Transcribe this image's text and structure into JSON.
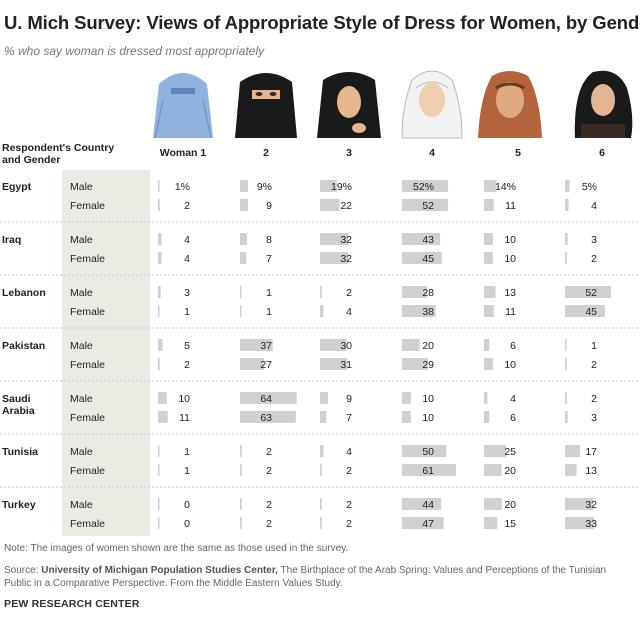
{
  "title": "U. Mich Survey: Views of Appropriate Style of Dress for Women, by Gender",
  "subtitle": "% who say woman is dressed most appropriately",
  "note": "Note: The images of women shown are the same as those used in the survey.",
  "source": {
    "prefix": "Source: ",
    "org": "University of Michigan Population Studies Center,",
    "rest": " The Birthplace of the Arab Spring: Values and Perceptions of the Tunisian Public in a Comparative Perspective. From the Middle Eastern Values Study."
  },
  "brand": "PEW RESEARCH CENTER",
  "colors": {
    "bar": "#d0d0d0",
    "band": "#ecebe3",
    "rule": "#c8c8c8",
    "text": "#222222",
    "veil_blue": "#8fb3df",
    "veil_black": "#1a1a1a",
    "skin": "#e6b68c"
  },
  "chart_data": {
    "type": "table",
    "title": "U. Mich Survey: Views of Appropriate Style of Dress for Women, by Gender",
    "subtitle": "% who say woman is dressed most appropriately",
    "row_header": "Respondent's Country and Gender",
    "columns": [
      "Woman 1",
      "2",
      "3",
      "4",
      "5",
      "6"
    ],
    "column_images": [
      "burqa-woman-image",
      "niqab-woman-image",
      "chador-woman-image",
      "white-hijab-woman-image",
      "loose-headscarf-woman-image",
      "uncovered-woman-image"
    ],
    "unit": "%",
    "percent_sign_row": "Egypt Male",
    "countries": [
      {
        "name": "Egypt",
        "rows": [
          {
            "gender": "Male",
            "values": [
              1,
              9,
              19,
              52,
              14,
              5
            ]
          },
          {
            "gender": "Female",
            "values": [
              2,
              9,
              22,
              52,
              11,
              4
            ]
          }
        ]
      },
      {
        "name": "Iraq",
        "rows": [
          {
            "gender": "Male",
            "values": [
              4,
              8,
              32,
              43,
              10,
              3
            ]
          },
          {
            "gender": "Female",
            "values": [
              4,
              7,
              32,
              45,
              10,
              2
            ]
          }
        ]
      },
      {
        "name": "Lebanon",
        "rows": [
          {
            "gender": "Male",
            "values": [
              3,
              1,
              2,
              28,
              13,
              52
            ]
          },
          {
            "gender": "Female",
            "values": [
              1,
              1,
              4,
              38,
              11,
              45
            ]
          }
        ]
      },
      {
        "name": "Pakistan",
        "rows": [
          {
            "gender": "Male",
            "values": [
              5,
              37,
              30,
              20,
              6,
              1
            ]
          },
          {
            "gender": "Female",
            "values": [
              2,
              27,
              31,
              29,
              10,
              2
            ]
          }
        ]
      },
      {
        "name": "Saudi Arabia",
        "lines": [
          "Saudi",
          "Arabia"
        ],
        "rows": [
          {
            "gender": "Male",
            "values": [
              10,
              64,
              9,
              10,
              4,
              2
            ]
          },
          {
            "gender": "Female",
            "values": [
              11,
              63,
              7,
              10,
              6,
              3
            ]
          }
        ]
      },
      {
        "name": "Tunisia",
        "rows": [
          {
            "gender": "Male",
            "values": [
              1,
              2,
              4,
              50,
              25,
              17
            ]
          },
          {
            "gender": "Female",
            "values": [
              1,
              2,
              2,
              61,
              20,
              13
            ]
          }
        ]
      },
      {
        "name": "Turkey",
        "rows": [
          {
            "gender": "Male",
            "values": [
              0,
              2,
              2,
              44,
              20,
              32
            ]
          },
          {
            "gender": "Female",
            "values": [
              0,
              2,
              2,
              47,
              15,
              33
            ]
          }
        ]
      }
    ]
  }
}
